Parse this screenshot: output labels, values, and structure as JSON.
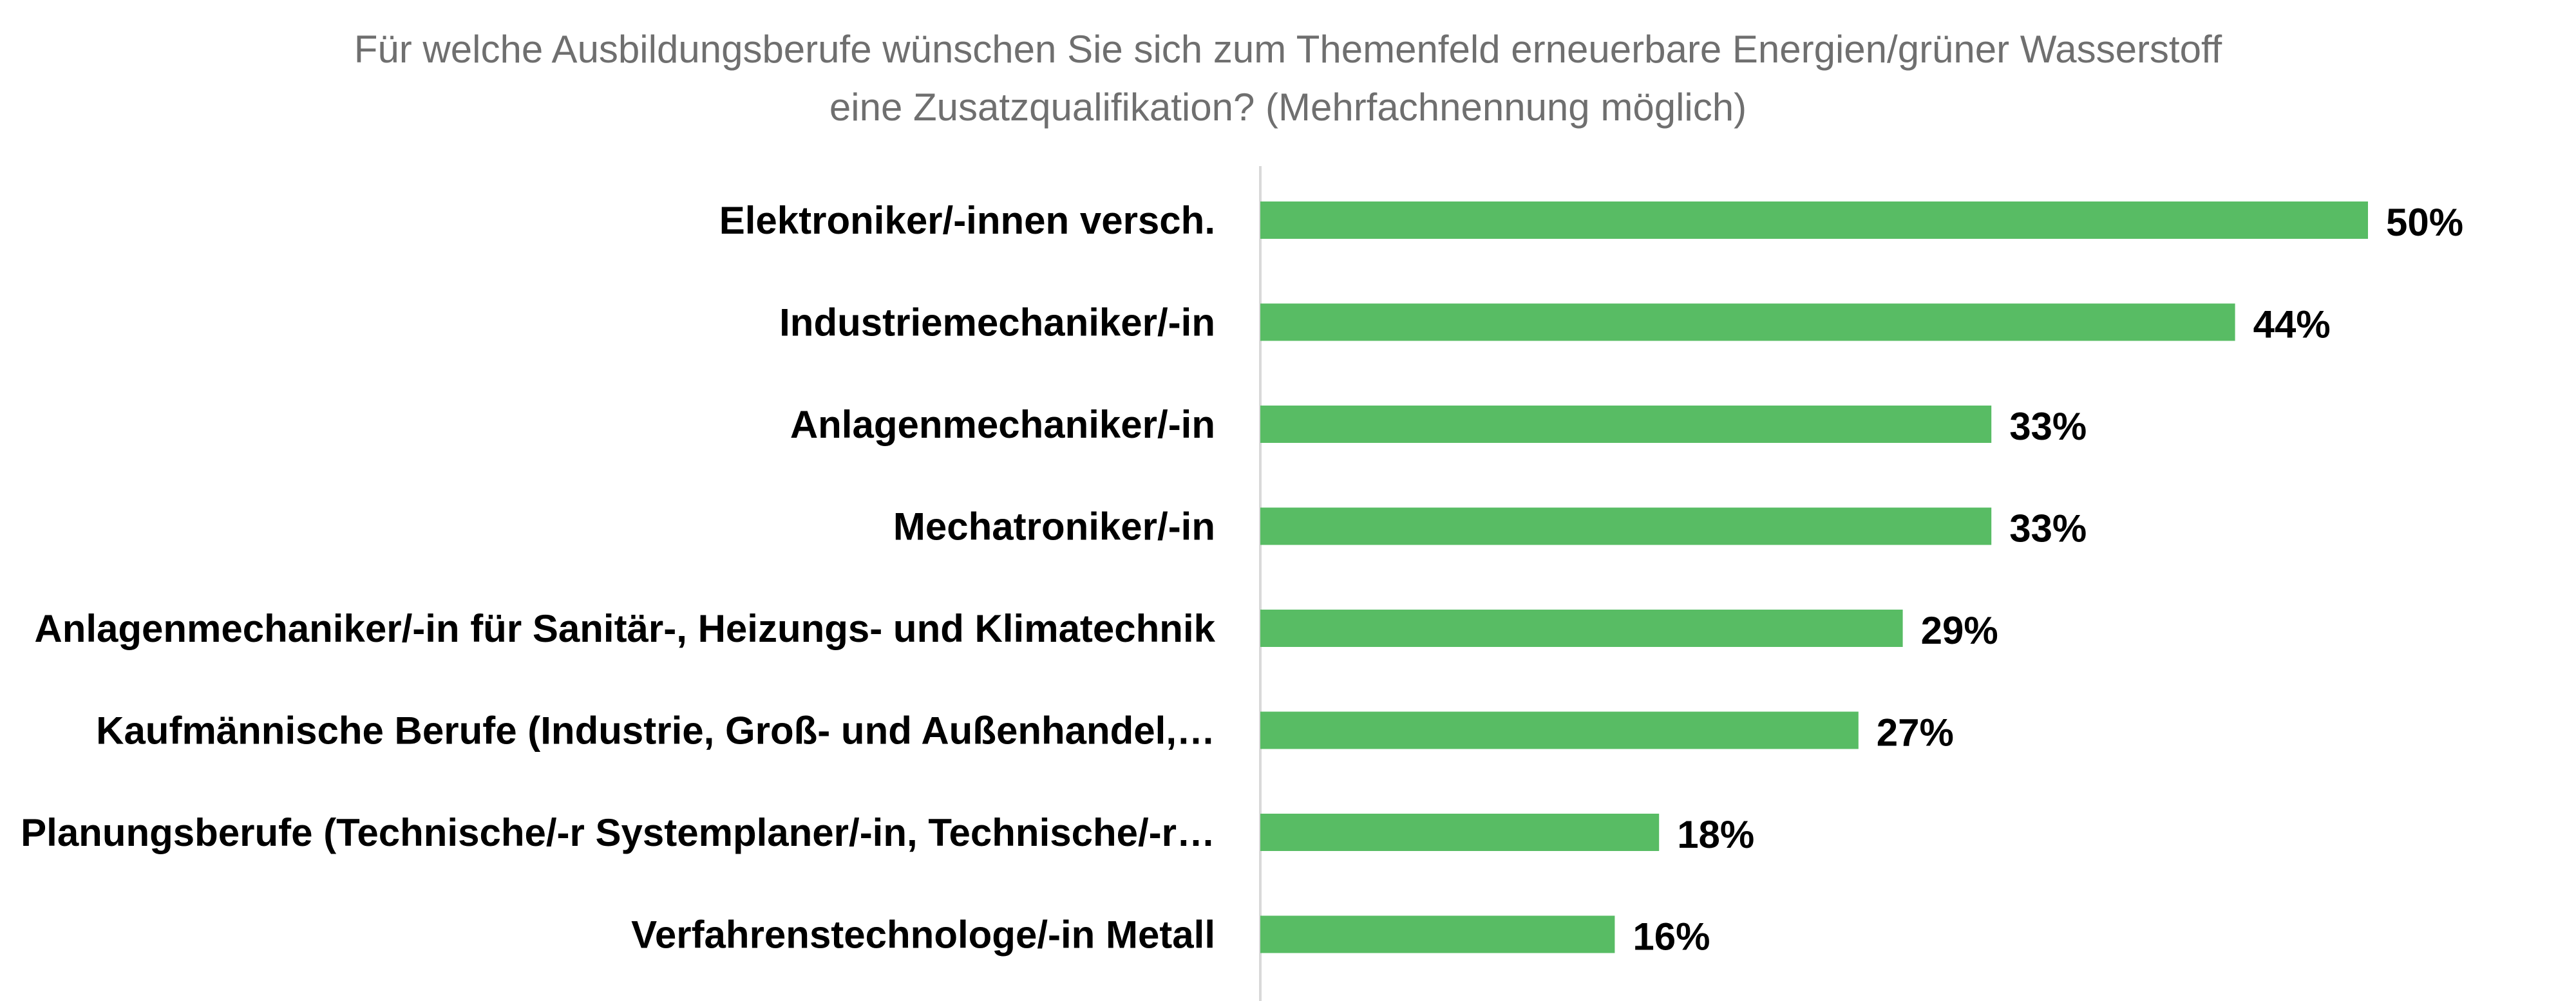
{
  "title_lines": [
    "Für welche Ausbildungsberufe wünschen Sie sich zum Themenfeld erneuerbare Energien/grüner Wasserstoff",
    "eine Zusatzqualifikation? (Mehrfachnennung möglich)"
  ],
  "colors": {
    "bar": "#58BC64",
    "axis": "#d9d9d9",
    "title": "#6f6f6f",
    "label": "#000000"
  },
  "chart_data": {
    "type": "bar",
    "orientation": "horizontal",
    "title": "Für welche Ausbildungsberufe wünschen Sie sich zum Themenfeld erneuerbare Energien/grüner Wasserstoff eine Zusatzqualifikation? (Mehrfachnennung möglich)",
    "categories": [
      "Elektroniker/-innen versch.",
      "Industriemechaniker/-in",
      "Anlagenmechaniker/-in",
      "Mechatroniker/-in",
      "Anlagenmechaniker/-in für Sanitär-, Heizungs- und Klimatechnik",
      "Kaufmännische Berufe (Industrie, Groß- und Außenhandel,…",
      "Planungsberufe (Technische/-r Systemplaner/-in, Technische/-r…",
      "Verfahrenstechnologe/-in Metall"
    ],
    "values": [
      50,
      44,
      33,
      33,
      29,
      27,
      18,
      16
    ],
    "value_labels": [
      "50%",
      "44%",
      "33%",
      "33%",
      "29%",
      "27%",
      "18%",
      "16%"
    ],
    "unit": "%",
    "xlim": [
      0,
      50
    ],
    "grid": false,
    "legend": "none"
  }
}
